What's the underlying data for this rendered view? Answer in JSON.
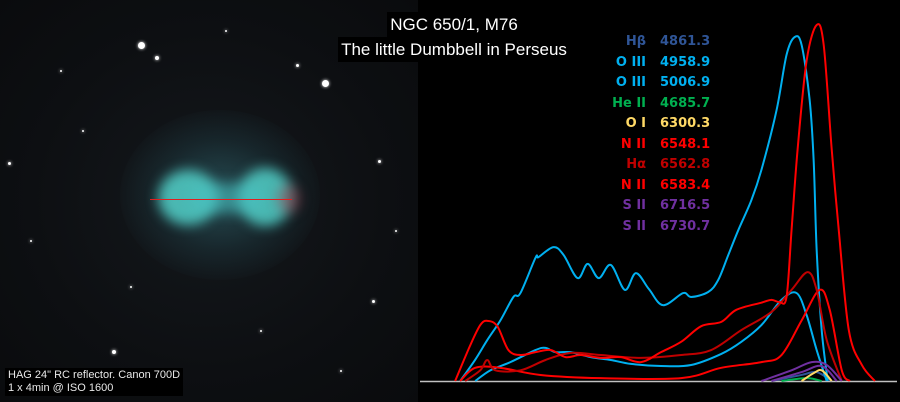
{
  "title": {
    "line1": "NGC 650/1,  M76",
    "line2": "The little Dumbbell in Perseus"
  },
  "caption": {
    "line1": "HAG 24\" RC reflector. Canon 700D",
    "line2": "1 x 4min @ ISO 1600"
  },
  "legend": [
    {
      "ion": "Hβ",
      "wavelength": "4861.3",
      "color": "#2f5597"
    },
    {
      "ion": "O III",
      "wavelength": "4958.9",
      "color": "#00b0f0"
    },
    {
      "ion": "O III",
      "wavelength": "5006.9",
      "color": "#00b0f0"
    },
    {
      "ion": "He II",
      "wavelength": "4685.7",
      "color": "#00b050"
    },
    {
      "ion": "O I",
      "wavelength": "6300.3",
      "color": "#ffd966"
    },
    {
      "ion": "N II",
      "wavelength": "6548.1",
      "color": "#ff0000"
    },
    {
      "ion": "Hα",
      "wavelength": "6562.8",
      "color": "#c00000"
    },
    {
      "ion": "N II",
      "wavelength": "6583.4",
      "color": "#ff0000"
    },
    {
      "ion": "S II",
      "wavelength": "6716.5",
      "color": "#7030a0"
    },
    {
      "ion": "S II",
      "wavelength": "6730.7",
      "color": "#7030a0"
    }
  ],
  "chart_data": {
    "type": "line",
    "title": "",
    "xlabel": "",
    "ylabel": "",
    "xlim": [
      0,
      95
    ],
    "ylim": [
      0,
      100
    ],
    "grid": false,
    "legend_position": "top-right",
    "baseline_color": "#c0c0c0",
    "series": [
      {
        "name": "Hβ 4861.3",
        "color": "#2f5597",
        "points": [
          [
            70,
            0
          ],
          [
            76,
            1.7
          ],
          [
            79,
            2.5
          ],
          [
            82,
            0
          ]
        ]
      },
      {
        "name": "O III 4958.9",
        "color": "#00b0f0",
        "points": [
          [
            11,
            0
          ],
          [
            14,
            3
          ],
          [
            18,
            5.3
          ],
          [
            23,
            8.7
          ],
          [
            25,
            9.3
          ],
          [
            27,
            8.1
          ],
          [
            30,
            8.1
          ],
          [
            34,
            6.7
          ],
          [
            38,
            5.9
          ],
          [
            42,
            4.8
          ],
          [
            48,
            4.2
          ],
          [
            54,
            4.5
          ],
          [
            60,
            7.6
          ],
          [
            64,
            11
          ],
          [
            68,
            15.7
          ],
          [
            72,
            22.8
          ],
          [
            75,
            24.7
          ],
          [
            77,
            18.5
          ],
          [
            79,
            8.7
          ],
          [
            81,
            0
          ]
        ]
      },
      {
        "name": "O III 5006.9",
        "color": "#00b0f0",
        "points": [
          [
            8,
            0
          ],
          [
            11,
            6
          ],
          [
            13.4,
            11.5
          ],
          [
            16,
            17
          ],
          [
            18.6,
            23.6
          ],
          [
            20,
            24.7
          ],
          [
            23,
            34.6
          ],
          [
            23.6,
            34.8
          ],
          [
            26.6,
            37.6
          ],
          [
            28.6,
            35.4
          ],
          [
            31.4,
            28.9
          ],
          [
            33.4,
            32.9
          ],
          [
            35.6,
            28.9
          ],
          [
            38,
            32.6
          ],
          [
            40.8,
            25.6
          ],
          [
            43,
            30.3
          ],
          [
            45.6,
            25.8
          ],
          [
            48.4,
            21.3
          ],
          [
            52.4,
            24.7
          ],
          [
            54,
            23.6
          ],
          [
            57.4,
            25
          ],
          [
            59.4,
            28.4
          ],
          [
            61.4,
            35.4
          ],
          [
            63.4,
            42.4
          ],
          [
            66,
            50.8
          ],
          [
            68,
            59.3
          ],
          [
            71,
            76
          ],
          [
            73,
            91.6
          ],
          [
            74.6,
            96.6
          ],
          [
            76,
            94.4
          ],
          [
            77.6,
            79
          ],
          [
            78.4,
            62
          ],
          [
            79,
            36.8
          ],
          [
            80,
            14.3
          ],
          [
            81.2,
            0
          ]
        ]
      },
      {
        "name": "He II 4685.7",
        "color": "#00b050",
        "points": [
          [
            72,
            0
          ],
          [
            77,
            0.8
          ],
          [
            80,
            0
          ]
        ]
      },
      {
        "name": "O I 6300.3",
        "color": "#ffd966",
        "points": [
          [
            76,
            0
          ],
          [
            78.4,
            2.2
          ],
          [
            80,
            3
          ],
          [
            82,
            0
          ]
        ]
      },
      {
        "name": "N II 6548.1",
        "color": "#ff0000",
        "points": [
          [
            8,
            0
          ],
          [
            11,
            3.7
          ],
          [
            16,
            3.7
          ],
          [
            24,
            1.7
          ],
          [
            36,
            0.8
          ],
          [
            52,
            0.8
          ],
          [
            60,
            3.7
          ],
          [
            68,
            5.3
          ],
          [
            72,
            7.3
          ],
          [
            76,
            17
          ],
          [
            79.6,
            25.6
          ],
          [
            81.6,
            20
          ],
          [
            84,
            3
          ],
          [
            85.6,
            0
          ]
        ]
      },
      {
        "name": "Hα 6562.8",
        "color": "#c00000",
        "points": [
          [
            9,
            0
          ],
          [
            12,
            3
          ],
          [
            13.4,
            5.9
          ],
          [
            15,
            3
          ],
          [
            20,
            3
          ],
          [
            25,
            5.9
          ],
          [
            30,
            7.9
          ],
          [
            36,
            7.3
          ],
          [
            44,
            6.5
          ],
          [
            52,
            7.3
          ],
          [
            58,
            8.7
          ],
          [
            64,
            14.3
          ],
          [
            70,
            19.4
          ],
          [
            74,
            25.6
          ],
          [
            77.2,
            30.6
          ],
          [
            79,
            25.6
          ],
          [
            81,
            11.5
          ],
          [
            84,
            0
          ]
        ]
      },
      {
        "name": "N II 6583.4",
        "color": "#ff0000",
        "points": [
          [
            7,
            0
          ],
          [
            10,
            10
          ],
          [
            12,
            15.7
          ],
          [
            13.4,
            16.9
          ],
          [
            15.4,
            15.4
          ],
          [
            17.6,
            8.7
          ],
          [
            20,
            7.3
          ],
          [
            23,
            8.1
          ],
          [
            26,
            8.7
          ],
          [
            29,
            6.7
          ],
          [
            32,
            7.3
          ],
          [
            36,
            6.5
          ],
          [
            40,
            6.7
          ],
          [
            44,
            5.3
          ],
          [
            48,
            8.1
          ],
          [
            52,
            11
          ],
          [
            56,
            15.4
          ],
          [
            60,
            16.6
          ],
          [
            63,
            20
          ],
          [
            68,
            22
          ],
          [
            70,
            22.8
          ],
          [
            71.6,
            22.2
          ],
          [
            73,
            23.6
          ],
          [
            74,
            42.4
          ],
          [
            75.2,
            65
          ],
          [
            77,
            90
          ],
          [
            79,
            100
          ],
          [
            80.4,
            94.4
          ],
          [
            82,
            65
          ],
          [
            83.4,
            42.4
          ],
          [
            85.4,
            14.3
          ],
          [
            88,
            4.5
          ],
          [
            90.6,
            0
          ]
        ]
      },
      {
        "name": "S II 6716.5",
        "color": "#7030a0",
        "points": [
          [
            70,
            0
          ],
          [
            76,
            2.5
          ],
          [
            80,
            4.2
          ],
          [
            83,
            0
          ]
        ]
      },
      {
        "name": "S II 6730.7",
        "color": "#7030a0",
        "points": [
          [
            68,
            0
          ],
          [
            74,
            3
          ],
          [
            78,
            5.3
          ],
          [
            81,
            4.5
          ],
          [
            84,
            0
          ]
        ]
      }
    ]
  }
}
